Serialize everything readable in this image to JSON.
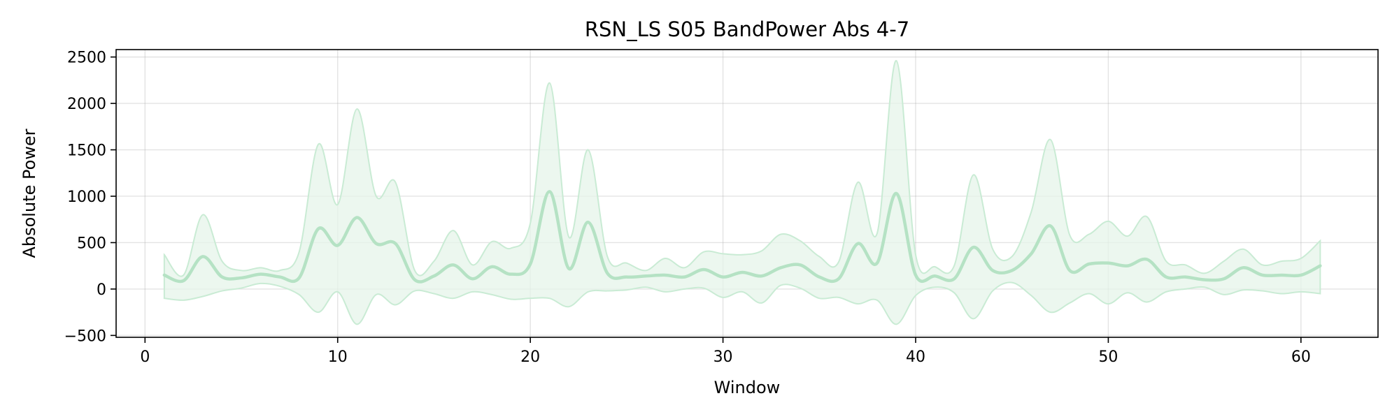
{
  "chart_data": {
    "type": "line",
    "title": "RSN_LS S05 BandPower Abs 4-7",
    "xlabel": "Window",
    "ylabel": "Absolute Power",
    "xlim": [
      -1.5,
      64
    ],
    "ylim": [
      -520,
      2580
    ],
    "xticks": [
      0,
      10,
      20,
      30,
      40,
      50,
      60
    ],
    "xtick_labels": [
      "0",
      "10",
      "20",
      "30",
      "40",
      "50",
      "60"
    ],
    "yticks": [
      -500,
      0,
      500,
      1000,
      1500,
      2000,
      2500
    ],
    "ytick_labels": [
      "−500",
      "0",
      "500",
      "1000",
      "1500",
      "2000",
      "2500"
    ],
    "grid": true,
    "colors": {
      "line": "#b5e2c4",
      "band_fill": "#e6f4ea",
      "band_edge": "#c9ebd4"
    },
    "series": [
      {
        "x": [
          1,
          2,
          3,
          4,
          5,
          6,
          7,
          8,
          9,
          10,
          11,
          12,
          13,
          14,
          15,
          16,
          17,
          18,
          19,
          20,
          21,
          22,
          23,
          24,
          25,
          26,
          27,
          28,
          29,
          30,
          31,
          32,
          33,
          34,
          35,
          36,
          37,
          38,
          39,
          40,
          41,
          42,
          43,
          44,
          45,
          46,
          47,
          48,
          49,
          50,
          51,
          52,
          53,
          54,
          55,
          56,
          57,
          58,
          59,
          60,
          61
        ],
        "mean": [
          150,
          90,
          350,
          130,
          120,
          160,
          130,
          120,
          650,
          470,
          770,
          490,
          490,
          100,
          140,
          260,
          110,
          240,
          160,
          270,
          1050,
          220,
          720,
          170,
          130,
          140,
          150,
          130,
          210,
          130,
          180,
          140,
          230,
          260,
          130,
          110,
          490,
          280,
          1030,
          150,
          140,
          110,
          450,
          200,
          200,
          380,
          680,
          200,
          270,
          280,
          250,
          320,
          130,
          130,
          100,
          110,
          230,
          150,
          150,
          150,
          250
        ],
        "upper": [
          370,
          150,
          800,
          300,
          200,
          230,
          200,
          400,
          1560,
          910,
          1940,
          1000,
          1150,
          200,
          300,
          630,
          260,
          510,
          440,
          710,
          2220,
          560,
          1500,
          350,
          280,
          200,
          330,
          230,
          400,
          380,
          370,
          410,
          590,
          520,
          350,
          290,
          1150,
          600,
          2460,
          370,
          240,
          250,
          1230,
          430,
          350,
          830,
          1610,
          580,
          590,
          730,
          570,
          780,
          300,
          260,
          170,
          300,
          430,
          260,
          300,
          330,
          520
        ],
        "lower": [
          -100,
          -120,
          -80,
          -20,
          10,
          60,
          30,
          -60,
          -250,
          -30,
          -380,
          -60,
          -170,
          -20,
          -50,
          -100,
          -30,
          -60,
          -110,
          -100,
          -100,
          -190,
          -30,
          -20,
          -10,
          20,
          -30,
          0,
          10,
          -90,
          -30,
          -150,
          40,
          10,
          -100,
          -90,
          -160,
          -120,
          -380,
          -70,
          20,
          -40,
          -320,
          -20,
          70,
          -70,
          -250,
          -150,
          -50,
          -160,
          -40,
          -140,
          -30,
          0,
          20,
          -60,
          -10,
          -20,
          -50,
          -30,
          -50
        ]
      }
    ]
  }
}
